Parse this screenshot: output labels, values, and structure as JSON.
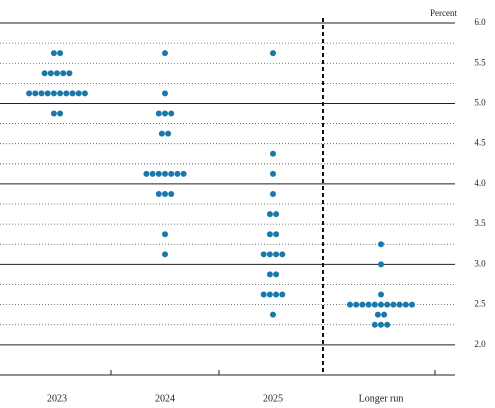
{
  "chart_data": {
    "type": "dot",
    "y_axis_label": "Percent",
    "categories": [
      "2023",
      "2024",
      "2025",
      "Longer run"
    ],
    "color": "#1a78aa",
    "ylim": [
      1.625,
      6.0
    ],
    "yticks": [
      {
        "value": 2.0,
        "label": "2.0"
      },
      {
        "value": 2.5,
        "label": "2.5"
      },
      {
        "value": 3.0,
        "label": "3.0"
      },
      {
        "value": 3.5,
        "label": "3.5"
      },
      {
        "value": 4.0,
        "label": "4.0"
      },
      {
        "value": 4.5,
        "label": "4.5"
      },
      {
        "value": 5.0,
        "label": "5.0"
      },
      {
        "value": 5.5,
        "label": "5.5"
      },
      {
        "value": 6.0,
        "label": "6.0"
      }
    ],
    "minor_yticks": [
      2.25,
      2.75,
      3.25,
      3.75,
      4.25,
      4.75,
      5.25,
      5.75
    ],
    "columns": [
      [
        {
          "value": 5.625,
          "count": 2
        },
        {
          "value": 5.375,
          "count": 5
        },
        {
          "value": 5.125,
          "count": 10
        },
        {
          "value": 4.875,
          "count": 2
        }
      ],
      [
        {
          "value": 5.625,
          "count": 1
        },
        {
          "value": 5.125,
          "count": 1
        },
        {
          "value": 4.875,
          "count": 3
        },
        {
          "value": 4.625,
          "count": 2
        },
        {
          "value": 4.125,
          "count": 7
        },
        {
          "value": 3.875,
          "count": 3
        },
        {
          "value": 3.375,
          "count": 1
        },
        {
          "value": 3.125,
          "count": 1
        }
      ],
      [
        {
          "value": 5.625,
          "count": 1
        },
        {
          "value": 4.375,
          "count": 1
        },
        {
          "value": 4.125,
          "count": 1
        },
        {
          "value": 3.875,
          "count": 1
        },
        {
          "value": 3.625,
          "count": 2
        },
        {
          "value": 3.375,
          "count": 2
        },
        {
          "value": 3.125,
          "count": 4
        },
        {
          "value": 2.875,
          "count": 2
        },
        {
          "value": 2.625,
          "count": 4
        },
        {
          "value": 2.375,
          "count": 1
        }
      ],
      [
        {
          "value": 3.25,
          "count": 1
        },
        {
          "value": 3.0,
          "count": 1
        },
        {
          "value": 2.625,
          "count": 1
        },
        {
          "value": 2.5,
          "count": 11
        },
        {
          "value": 2.375,
          "count": 2
        },
        {
          "value": 2.25,
          "count": 3
        }
      ]
    ]
  }
}
